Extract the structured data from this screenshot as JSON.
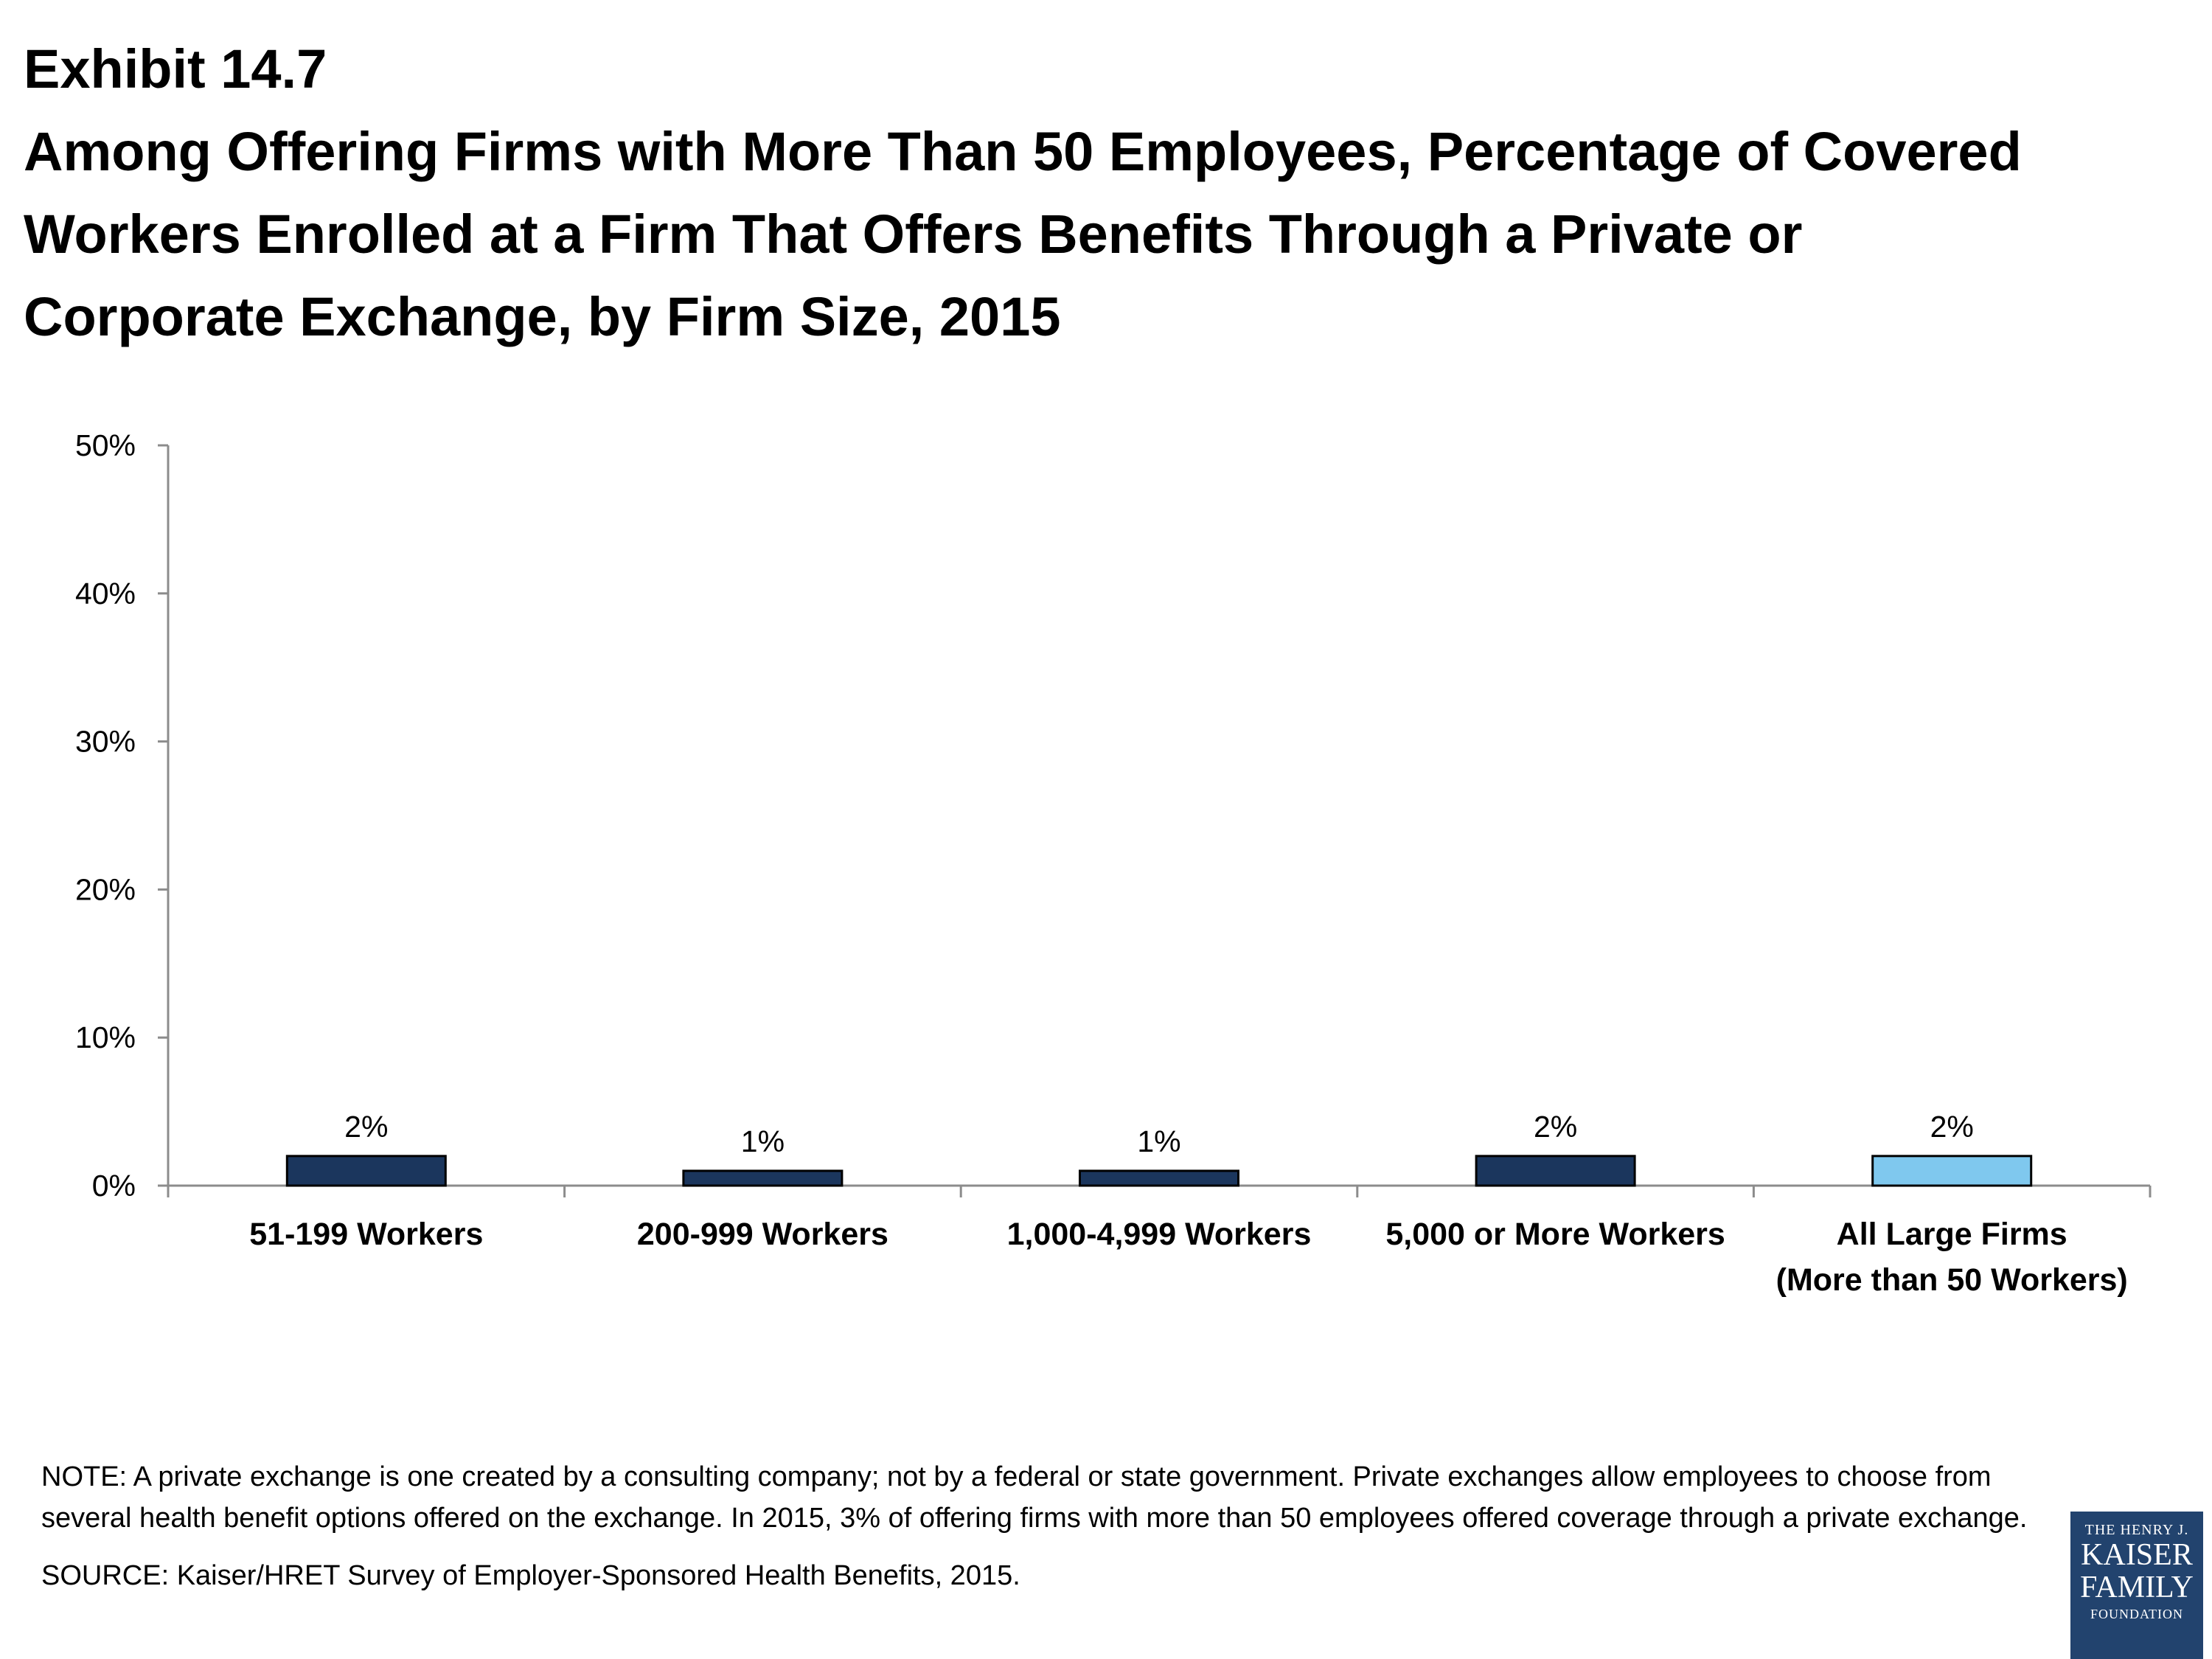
{
  "header": {
    "exhibit": "Exhibit 14.7",
    "title_lines": [
      "Among Offering Firms with More Than 50 Employees, Percentage of Covered",
      "Workers Enrolled at a Firm That Offers Benefits Through a Private or",
      "Corporate Exchange, by Firm Size, 2015"
    ]
  },
  "chart_data": {
    "type": "bar",
    "title": "Among Offering Firms with More Than 50 Employees, Percentage of Covered Workers Enrolled at a Firm That Offers Benefits Through a Private or Corporate Exchange, by Firm Size, 2015",
    "categories": [
      [
        "51-199 Workers"
      ],
      [
        "200-999 Workers"
      ],
      [
        "1,000-4,999 Workers"
      ],
      [
        "5,000 or More Workers"
      ],
      [
        "All Large Firms",
        "(More than 50 Workers)"
      ]
    ],
    "values": [
      2,
      1,
      1,
      2,
      2
    ],
    "data_labels": [
      "2%",
      "1%",
      "1%",
      "2%",
      "2%"
    ],
    "bar_colors": [
      "#1b365d",
      "#1b365d",
      "#1b365d",
      "#1b365d",
      "#7fc8ee"
    ],
    "ylim": [
      0,
      50
    ],
    "yticks": [
      0,
      10,
      20,
      30,
      40,
      50
    ],
    "ytick_labels": [
      "0%",
      "10%",
      "20%",
      "30%",
      "40%",
      "50%"
    ],
    "xlabel": "",
    "ylabel": "",
    "grid": false,
    "legend": "none"
  },
  "notes": {
    "note": "NOTE: A private exchange is one created by a consulting company; not by a federal or state government. Private exchanges allow employees to choose from several health benefit options offered on the exchange. In 2015, 3% of offering firms with more than 50 employees offered coverage through a private exchange.",
    "source": "SOURCE: Kaiser/HRET Survey of Employer-Sponsored Health Benefits, 2015."
  },
  "logo": {
    "line1": "THE HENRY J.",
    "line2": "KAISER",
    "line3": "FAMILY",
    "line4": "FOUNDATION"
  }
}
